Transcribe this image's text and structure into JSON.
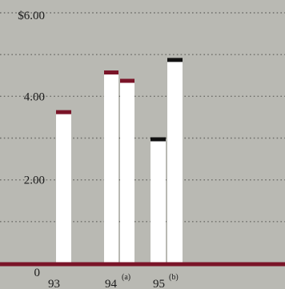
{
  "chart_data": {
    "type": "bar",
    "title": "",
    "xlabel": "",
    "ylabel": "",
    "ylim": [
      0,
      6
    ],
    "grid": true,
    "y_ticks": [
      {
        "value": 6,
        "label": "$6.00"
      },
      {
        "value": 4,
        "label": "4.00"
      },
      {
        "value": 2,
        "label": "2.00"
      },
      {
        "value": 0,
        "label": "0"
      }
    ],
    "categories": [
      {
        "label": "93",
        "note": ""
      },
      {
        "label": "94",
        "note": "(a)"
      },
      {
        "label": "95",
        "note": "(b)"
      }
    ],
    "bars": [
      {
        "category": 0,
        "value": 3.65,
        "cap_color": "#7a1428"
      },
      {
        "category": 1,
        "value": 4.6,
        "cap_color": "#7a1428"
      },
      {
        "category": 1,
        "value": 4.4,
        "cap_color": "#7a1428"
      },
      {
        "category": 2,
        "value": 3.0,
        "cap_color": "#111111"
      },
      {
        "category": 2,
        "value": 4.9,
        "cap_color": "#111111"
      }
    ],
    "colors": {
      "background": "#b9b9b3",
      "bar": "#ffffff",
      "baseline": "#7a1428",
      "gridline": "#6e6e6a"
    }
  }
}
